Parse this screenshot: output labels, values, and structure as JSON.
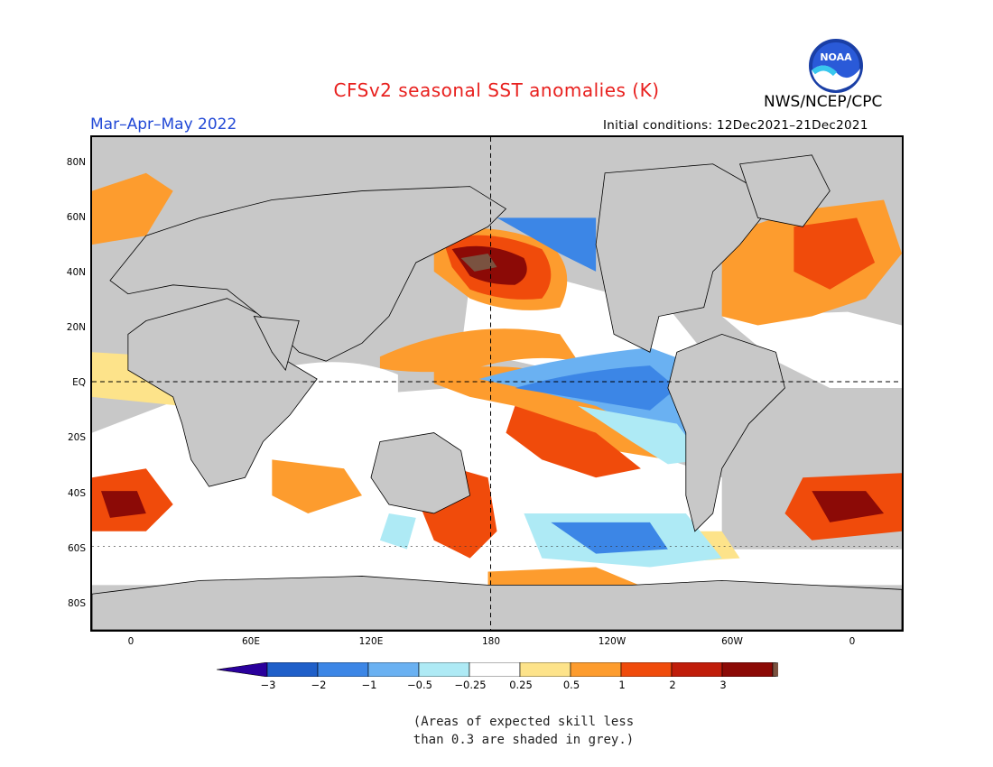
{
  "header": {
    "title": "CFSv2 seasonal SST anomalies (K)",
    "season": "Mar–Apr–May 2022",
    "initial_conditions": "Initial conditions: 12Dec2021–21Dec2021",
    "org": "NWS/NCEP/CPC",
    "logo_text": "NOAA"
  },
  "map": {
    "lat_labels": [
      "80N",
      "60N",
      "40N",
      "20N",
      "EQ",
      "20S",
      "40S",
      "60S",
      "80S"
    ],
    "lon_labels": [
      "0",
      "60E",
      "120E",
      "180",
      "120W",
      "60W",
      "0"
    ]
  },
  "colorbar": {
    "labels": [
      "−3",
      "−2",
      "−1",
      "−0.5",
      "−0.25",
      "0.25",
      "0.5",
      "1",
      "2",
      "3"
    ],
    "colors": [
      "#2a009c",
      "#1f5fc9",
      "#3c86e6",
      "#6ab1f2",
      "#aeeaf5",
      "#ffffff",
      "#fde38a",
      "#fd9c2e",
      "#f04b0b",
      "#c01d0a",
      "#8c0a06",
      "#7a5240"
    ]
  },
  "note": {
    "line1": "(Areas of expected skill less",
    "line2": "than 0.3 are shaded in grey.)"
  }
}
